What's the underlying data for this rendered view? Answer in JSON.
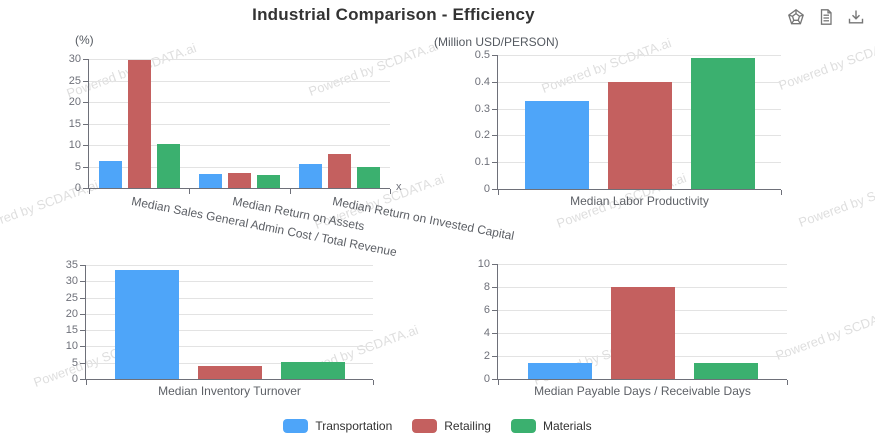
{
  "title": "Industrial Comparison - Efficiency",
  "toolbar": {
    "icons": [
      {
        "name": "radar-chart-icon"
      },
      {
        "name": "report-icon"
      },
      {
        "name": "download-icon"
      }
    ]
  },
  "watermark": {
    "text": "Powered by SCDATA.ai"
  },
  "colors": {
    "transportation": "#4ea5f9",
    "retailing": "#c4605f",
    "materials": "#3bb06f",
    "grid": "#e3e3e3",
    "axis": "#6e7079"
  },
  "legend": {
    "items": [
      {
        "label": "Transportation",
        "color": "#4ea5f9"
      },
      {
        "label": "Retailing",
        "color": "#c4605f"
      },
      {
        "label": "Materials",
        "color": "#3bb06f"
      }
    ]
  },
  "chart_data": [
    {
      "type": "bar",
      "unit_label": "(%)",
      "x_axis_name": "x",
      "categories": [
        "Median Sales General Admin Cost / Total Revenue",
        "Median Return on Assets",
        "Median Return on Invested Capital"
      ],
      "series": [
        {
          "name": "Transportation",
          "color": "#4ea5f9",
          "values": [
            6.2,
            3.2,
            5.6
          ]
        },
        {
          "name": "Retailing",
          "color": "#c4605f",
          "values": [
            29.7,
            3.5,
            7.8
          ]
        },
        {
          "name": "Materials",
          "color": "#3bb06f",
          "values": [
            10.3,
            3.0,
            5.0
          ]
        }
      ],
      "ylim": [
        0,
        30
      ],
      "ytick_step": 5,
      "rotated_labels": true,
      "grid": true,
      "legend_position": "bottom"
    },
    {
      "type": "bar",
      "unit_label": "(Million USD/PERSON)",
      "x_axis_name": "",
      "categories": [
        "Median Labor Productivity"
      ],
      "series": [
        {
          "name": "Transportation",
          "color": "#4ea5f9",
          "values": [
            0.33
          ]
        },
        {
          "name": "Retailing",
          "color": "#c4605f",
          "values": [
            0.4
          ]
        },
        {
          "name": "Materials",
          "color": "#3bb06f",
          "values": [
            0.49
          ]
        }
      ],
      "ylim": [
        0,
        0.5
      ],
      "ytick_step": 0.1,
      "rotated_labels": false,
      "grid": true,
      "legend_position": "bottom"
    },
    {
      "type": "bar",
      "unit_label": "",
      "x_axis_name": "",
      "categories": [
        "Median Inventory Turnover"
      ],
      "series": [
        {
          "name": "Transportation",
          "color": "#4ea5f9",
          "values": [
            33.5
          ]
        },
        {
          "name": "Retailing",
          "color": "#c4605f",
          "values": [
            4.0
          ]
        },
        {
          "name": "Materials",
          "color": "#3bb06f",
          "values": [
            5.3
          ]
        }
      ],
      "ylim": [
        0,
        35
      ],
      "ytick_step": 5,
      "rotated_labels": false,
      "grid": true,
      "legend_position": "bottom"
    },
    {
      "type": "bar",
      "unit_label": "",
      "x_axis_name": "",
      "categories": [
        "Median Payable Days / Receivable Days"
      ],
      "series": [
        {
          "name": "Transportation",
          "color": "#4ea5f9",
          "values": [
            1.4
          ]
        },
        {
          "name": "Retailing",
          "color": "#c4605f",
          "values": [
            8.0
          ]
        },
        {
          "name": "Materials",
          "color": "#3bb06f",
          "values": [
            1.4
          ]
        }
      ],
      "ylim": [
        0,
        10
      ],
      "ytick_step": 2,
      "rotated_labels": false,
      "grid": true,
      "legend_position": "bottom"
    }
  ]
}
